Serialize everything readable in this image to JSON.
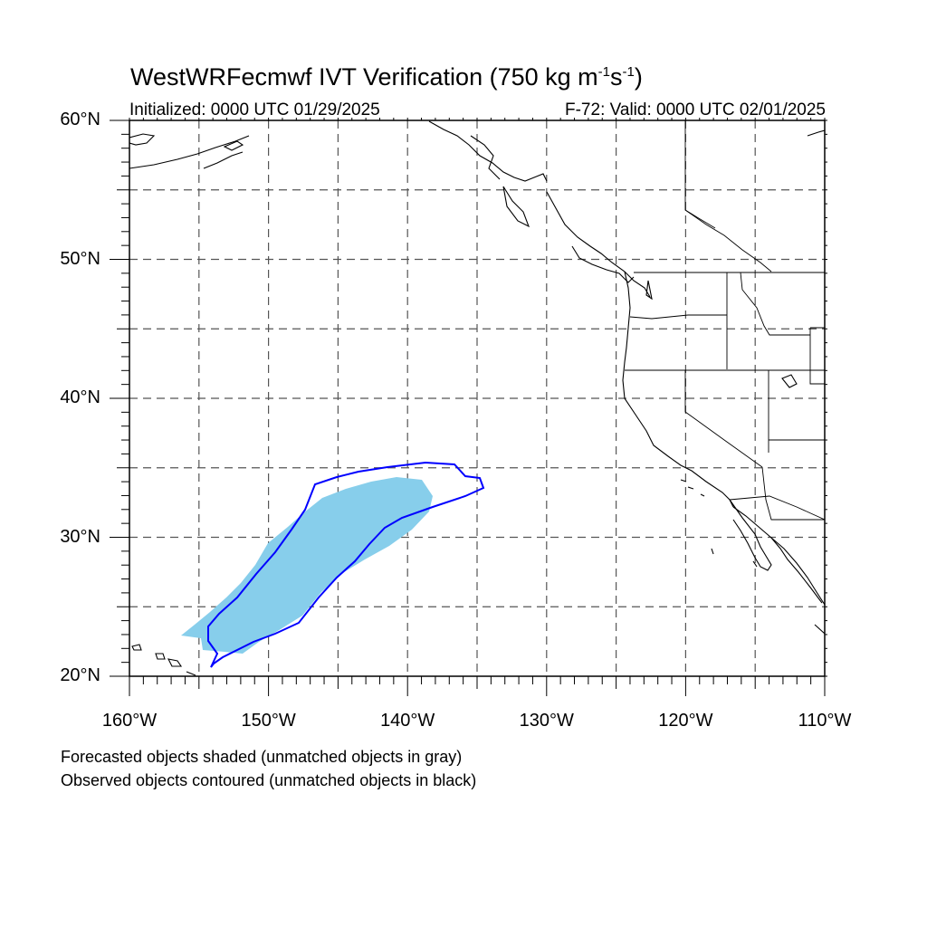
{
  "header": {
    "title_main": "WestWRFecmwf IVT Verification (750 kg m",
    "title_sup1": "-1",
    "title_mid": "s",
    "title_sup2": "-1",
    "title_end": ")",
    "initialized": "Initialized: 0000 UTC 01/29/2025",
    "valid": "F-72: Valid: 0000 UTC 02/01/2025"
  },
  "axes": {
    "lat_range": [
      20,
      60
    ],
    "lon_range": [
      -160,
      -110
    ],
    "lat_labels": [
      {
        "value": 60,
        "text": "60°N"
      },
      {
        "value": 50,
        "text": "50°N"
      },
      {
        "value": 40,
        "text": "40°N"
      },
      {
        "value": 30,
        "text": "30°N"
      },
      {
        "value": 20,
        "text": "20°N"
      }
    ],
    "lon_labels": [
      {
        "value": -160,
        "text": "160°W"
      },
      {
        "value": -150,
        "text": "150°W"
      },
      {
        "value": -140,
        "text": "140°W"
      },
      {
        "value": -130,
        "text": "130°W"
      },
      {
        "value": -120,
        "text": "120°W"
      },
      {
        "value": -110,
        "text": "110°W"
      }
    ],
    "gridlines": "dashed every 5°"
  },
  "objects": {
    "forecast_color": "#87ceeb",
    "observed_color": "#0000ff"
  },
  "legend": {
    "line1": "Forecasted objects shaded (unmatched objects in gray)",
    "line2": "Observed objects contoured (unmatched objects in black)"
  }
}
